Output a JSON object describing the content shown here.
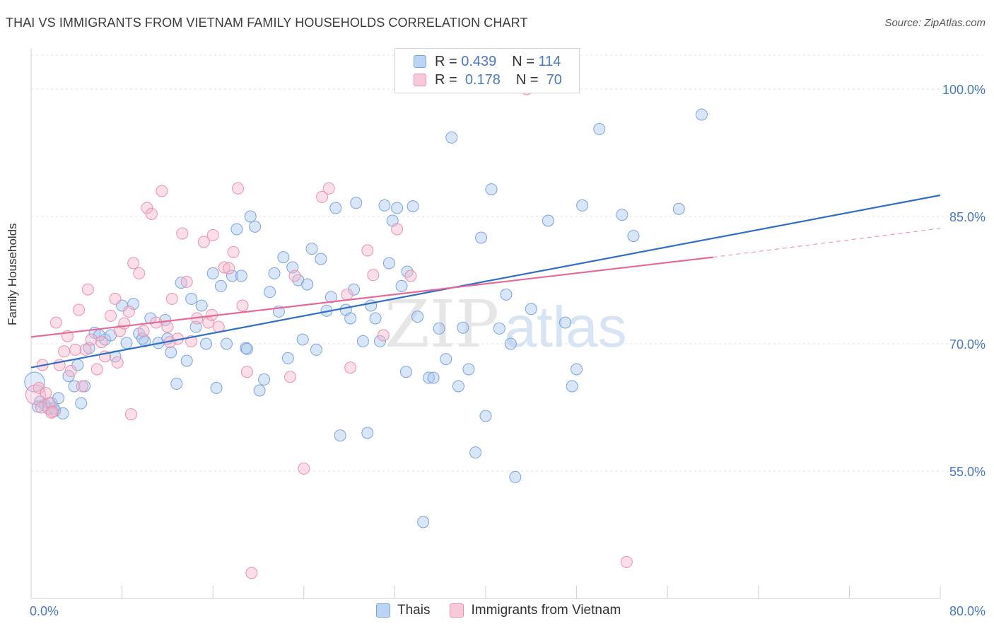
{
  "header": {
    "title": "THAI VS IMMIGRANTS FROM VIETNAM FAMILY HOUSEHOLDS CORRELATION CHART",
    "source": "Source: ZipAtlas.com"
  },
  "watermark": {
    "zip": "ZIP",
    "atlas": "atlas"
  },
  "legend_top": {
    "rows": [
      {
        "r_label": "R =",
        "r_value": "0.439",
        "n_label": "N =",
        "n_value": "114"
      },
      {
        "r_label": "R =",
        "r_value": "0.178",
        "n_label": "N =",
        "n_value": "70"
      }
    ]
  },
  "colors": {
    "blue_fill": "#aac8f0",
    "blue_stroke": "#7aa3dc",
    "blue_line": "#2f6fc6",
    "pink_fill": "#f5b8cb",
    "pink_stroke": "#ec8fae",
    "pink_line": "#e46b96",
    "tick_label": "#4a78c2",
    "grid": "#e2e2e2"
  },
  "chart_data": {
    "type": "scatter",
    "title": "THAI VS IMMIGRANTS FROM VIETNAM FAMILY HOUSEHOLDS CORRELATION CHART",
    "xlabel": "",
    "ylabel": "Family Households",
    "xlim": [
      0,
      80
    ],
    "ylim": [
      40,
      104
    ],
    "x_tick_labels": [
      {
        "value": 0,
        "label": "0.0%"
      },
      {
        "value": 80,
        "label": "80.0%"
      }
    ],
    "y_tick_labels": [
      {
        "value": 55,
        "label": "55.0%"
      },
      {
        "value": 70,
        "label": "70.0%"
      },
      {
        "value": 85,
        "label": "85.0%"
      },
      {
        "value": 100,
        "label": "100.0%"
      }
    ],
    "grid": "horizontal dashed",
    "legend_placement": "bottom",
    "series": [
      {
        "name": "Thais",
        "color": "#aac8f0",
        "r": 0.439,
        "n": 114,
        "trend": {
          "x": [
            0,
            80
          ],
          "y": [
            67.2,
            87.5
          ]
        },
        "points": [
          [
            0.3,
            65.5
          ],
          [
            0.8,
            63.2
          ],
          [
            1.2,
            62.8
          ],
          [
            1.5,
            62.4
          ],
          [
            1.8,
            63.0
          ],
          [
            2.1,
            62.1
          ],
          [
            2.4,
            63.6
          ],
          [
            2.8,
            61.8
          ],
          [
            3.3,
            66.2
          ],
          [
            3.8,
            65.0
          ],
          [
            4.1,
            67.5
          ],
          [
            4.4,
            63.0
          ],
          [
            4.7,
            65.0
          ],
          [
            5.1,
            69.5
          ],
          [
            5.6,
            71.3
          ],
          [
            6.5,
            70.5
          ],
          [
            7.0,
            71.0
          ],
          [
            7.4,
            68.5
          ],
          [
            8.0,
            74.5
          ],
          [
            8.4,
            70.1
          ],
          [
            9.0,
            74.7
          ],
          [
            9.5,
            71.2
          ],
          [
            10.0,
            70.3
          ],
          [
            10.5,
            73.0
          ],
          [
            11.2,
            70.1
          ],
          [
            11.8,
            72.8
          ],
          [
            12.3,
            69.0
          ],
          [
            12.8,
            65.3
          ],
          [
            13.2,
            77.2
          ],
          [
            13.7,
            68.0
          ],
          [
            14.1,
            75.3
          ],
          [
            14.5,
            72.0
          ],
          [
            15.0,
            74.5
          ],
          [
            15.4,
            70.0
          ],
          [
            16.0,
            78.3
          ],
          [
            16.3,
            64.8
          ],
          [
            16.7,
            76.8
          ],
          [
            17.2,
            70.0
          ],
          [
            17.7,
            78.0
          ],
          [
            18.1,
            83.5
          ],
          [
            18.5,
            78.0
          ],
          [
            18.9,
            69.5
          ],
          [
            19.3,
            85.0
          ],
          [
            19.7,
            83.8
          ],
          [
            20.1,
            64.5
          ],
          [
            20.5,
            65.8
          ],
          [
            21.0,
            76.1
          ],
          [
            21.4,
            78.3
          ],
          [
            21.8,
            73.8
          ],
          [
            22.2,
            80.2
          ],
          [
            22.6,
            68.3
          ],
          [
            23.0,
            79.0
          ],
          [
            23.5,
            77.5
          ],
          [
            23.9,
            70.5
          ],
          [
            24.3,
            77.0
          ],
          [
            24.7,
            81.2
          ],
          [
            25.1,
            69.3
          ],
          [
            25.5,
            80.0
          ],
          [
            26.0,
            73.9
          ],
          [
            26.4,
            75.5
          ],
          [
            26.8,
            86.0
          ],
          [
            27.2,
            59.2
          ],
          [
            27.7,
            74.0
          ],
          [
            28.1,
            73.0
          ],
          [
            28.6,
            86.6
          ],
          [
            29.2,
            70.3
          ],
          [
            29.6,
            59.5
          ],
          [
            29.9,
            74.5
          ],
          [
            30.3,
            73.0
          ],
          [
            30.7,
            70.3
          ],
          [
            31.1,
            86.3
          ],
          [
            31.5,
            79.5
          ],
          [
            31.8,
            84.5
          ],
          [
            32.2,
            86.0
          ],
          [
            32.6,
            76.8
          ],
          [
            33.1,
            78.5
          ],
          [
            33.6,
            86.2
          ],
          [
            34.0,
            73.2
          ],
          [
            34.5,
            49.0
          ],
          [
            35.0,
            66.0
          ],
          [
            35.4,
            66.0
          ],
          [
            35.9,
            71.8
          ],
          [
            36.5,
            68.2
          ],
          [
            37.0,
            94.3
          ],
          [
            37.6,
            65.0
          ],
          [
            38.0,
            71.9
          ],
          [
            38.5,
            67.0
          ],
          [
            39.1,
            57.2
          ],
          [
            39.6,
            82.5
          ],
          [
            40.0,
            61.5
          ],
          [
            40.5,
            88.2
          ],
          [
            41.2,
            71.8
          ],
          [
            41.8,
            75.8
          ],
          [
            42.2,
            70.0
          ],
          [
            42.6,
            54.3
          ],
          [
            44.0,
            74.1
          ],
          [
            45.5,
            84.5
          ],
          [
            47.0,
            72.5
          ],
          [
            47.6,
            65.0
          ],
          [
            48.0,
            67.0
          ],
          [
            48.5,
            86.3
          ],
          [
            50.0,
            95.3
          ],
          [
            52.0,
            85.2
          ],
          [
            53.0,
            82.7
          ],
          [
            57.0,
            85.9
          ],
          [
            59.0,
            97.0
          ],
          [
            0.6,
            62.6
          ],
          [
            2.0,
            62.4
          ],
          [
            6.0,
            71.0
          ],
          [
            9.8,
            70.6
          ],
          [
            12.0,
            70.6
          ],
          [
            19.0,
            69.4
          ],
          [
            33.0,
            66.7
          ],
          [
            28.4,
            76.4
          ]
        ]
      },
      {
        "name": "Immigrants from Vietnam",
        "color": "#f5b8cb",
        "r": 0.178,
        "n": 70,
        "trend": {
          "x": [
            0,
            60
          ],
          "y": [
            70.8,
            80.2
          ]
        },
        "trend_dashed": {
          "x": [
            60,
            80
          ],
          "y": [
            80.2,
            83.6
          ]
        },
        "points": [
          [
            0.4,
            64.0
          ],
          [
            0.7,
            64.8
          ],
          [
            1.0,
            67.5
          ],
          [
            1.3,
            64.2
          ],
          [
            1.6,
            63.0
          ],
          [
            1.9,
            62.0
          ],
          [
            2.2,
            72.5
          ],
          [
            2.5,
            67.5
          ],
          [
            2.9,
            69.1
          ],
          [
            3.2,
            70.9
          ],
          [
            3.5,
            66.8
          ],
          [
            3.9,
            69.3
          ],
          [
            4.2,
            74.0
          ],
          [
            4.5,
            65.0
          ],
          [
            5.0,
            76.4
          ],
          [
            5.3,
            70.5
          ],
          [
            5.8,
            67.0
          ],
          [
            6.2,
            70.2
          ],
          [
            6.5,
            68.5
          ],
          [
            7.0,
            73.3
          ],
          [
            7.4,
            75.3
          ],
          [
            7.8,
            71.5
          ],
          [
            8.2,
            72.4
          ],
          [
            8.6,
            73.8
          ],
          [
            9.0,
            79.5
          ],
          [
            9.5,
            78.3
          ],
          [
            9.9,
            71.5
          ],
          [
            10.2,
            86.0
          ],
          [
            10.6,
            85.3
          ],
          [
            11.0,
            72.5
          ],
          [
            11.5,
            88.0
          ],
          [
            12.0,
            72.0
          ],
          [
            12.4,
            75.3
          ],
          [
            12.9,
            70.6
          ],
          [
            13.3,
            83.0
          ],
          [
            13.7,
            77.3
          ],
          [
            14.1,
            70.3
          ],
          [
            14.6,
            73.0
          ],
          [
            15.2,
            82.0
          ],
          [
            15.6,
            72.5
          ],
          [
            16.0,
            82.8
          ],
          [
            16.5,
            72.0
          ],
          [
            17.0,
            79.0
          ],
          [
            17.4,
            78.9
          ],
          [
            17.8,
            80.8
          ],
          [
            18.2,
            88.3
          ],
          [
            18.6,
            74.5
          ],
          [
            19.0,
            66.7
          ],
          [
            19.4,
            43.0
          ],
          [
            23.2,
            78.0
          ],
          [
            24.0,
            55.3
          ],
          [
            25.6,
            87.3
          ],
          [
            26.2,
            88.3
          ],
          [
            27.8,
            75.8
          ],
          [
            28.1,
            67.2
          ],
          [
            29.6,
            81.0
          ],
          [
            30.1,
            78.1
          ],
          [
            31.0,
            71.0
          ],
          [
            32.2,
            83.5
          ],
          [
            33.4,
            78.0
          ],
          [
            43.6,
            100.0
          ],
          [
            52.4,
            44.3
          ],
          [
            0.9,
            62.5
          ],
          [
            1.8,
            61.9
          ],
          [
            4.8,
            69.3
          ],
          [
            7.6,
            67.8
          ],
          [
            8.8,
            61.7
          ],
          [
            15.9,
            73.4
          ],
          [
            12.2,
            70.2
          ],
          [
            22.8,
            66.1
          ]
        ]
      }
    ]
  }
}
